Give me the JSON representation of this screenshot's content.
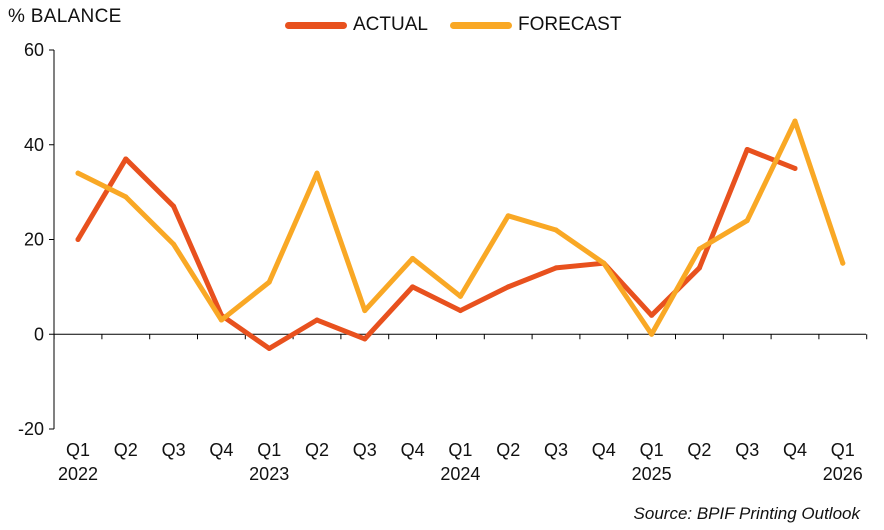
{
  "chart_data": {
    "type": "line",
    "ylabel": "% BALANCE",
    "ylim": [
      -20,
      60
    ],
    "yticks": [
      -20,
      0,
      20,
      40,
      60
    ],
    "categories": [
      "Q1",
      "Q2",
      "Q3",
      "Q4",
      "Q1",
      "Q2",
      "Q3",
      "Q4",
      "Q1",
      "Q2",
      "Q3",
      "Q4",
      "Q1",
      "Q2",
      "Q3",
      "Q4",
      "Q1"
    ],
    "year_labels": [
      "2022",
      "",
      "",
      "",
      "2023",
      "",
      "",
      "",
      "2024",
      "",
      "",
      "",
      "2025",
      "",
      "",
      "",
      "2026"
    ],
    "series": [
      {
        "name": "ACTUAL",
        "color": "#e8511e",
        "values": [
          20,
          37,
          27,
          4,
          -3,
          3,
          -1,
          10,
          5,
          10,
          14,
          15,
          4,
          14,
          39,
          35,
          null
        ]
      },
      {
        "name": "FORECAST",
        "color": "#f9a825",
        "values": [
          34,
          29,
          19,
          3,
          11,
          34,
          5,
          16,
          8,
          25,
          22,
          15,
          0,
          18,
          24,
          45,
          15
        ]
      }
    ],
    "legend_position": "top-center",
    "grid": false,
    "source": "Source: BPIF Printing Outlook"
  }
}
